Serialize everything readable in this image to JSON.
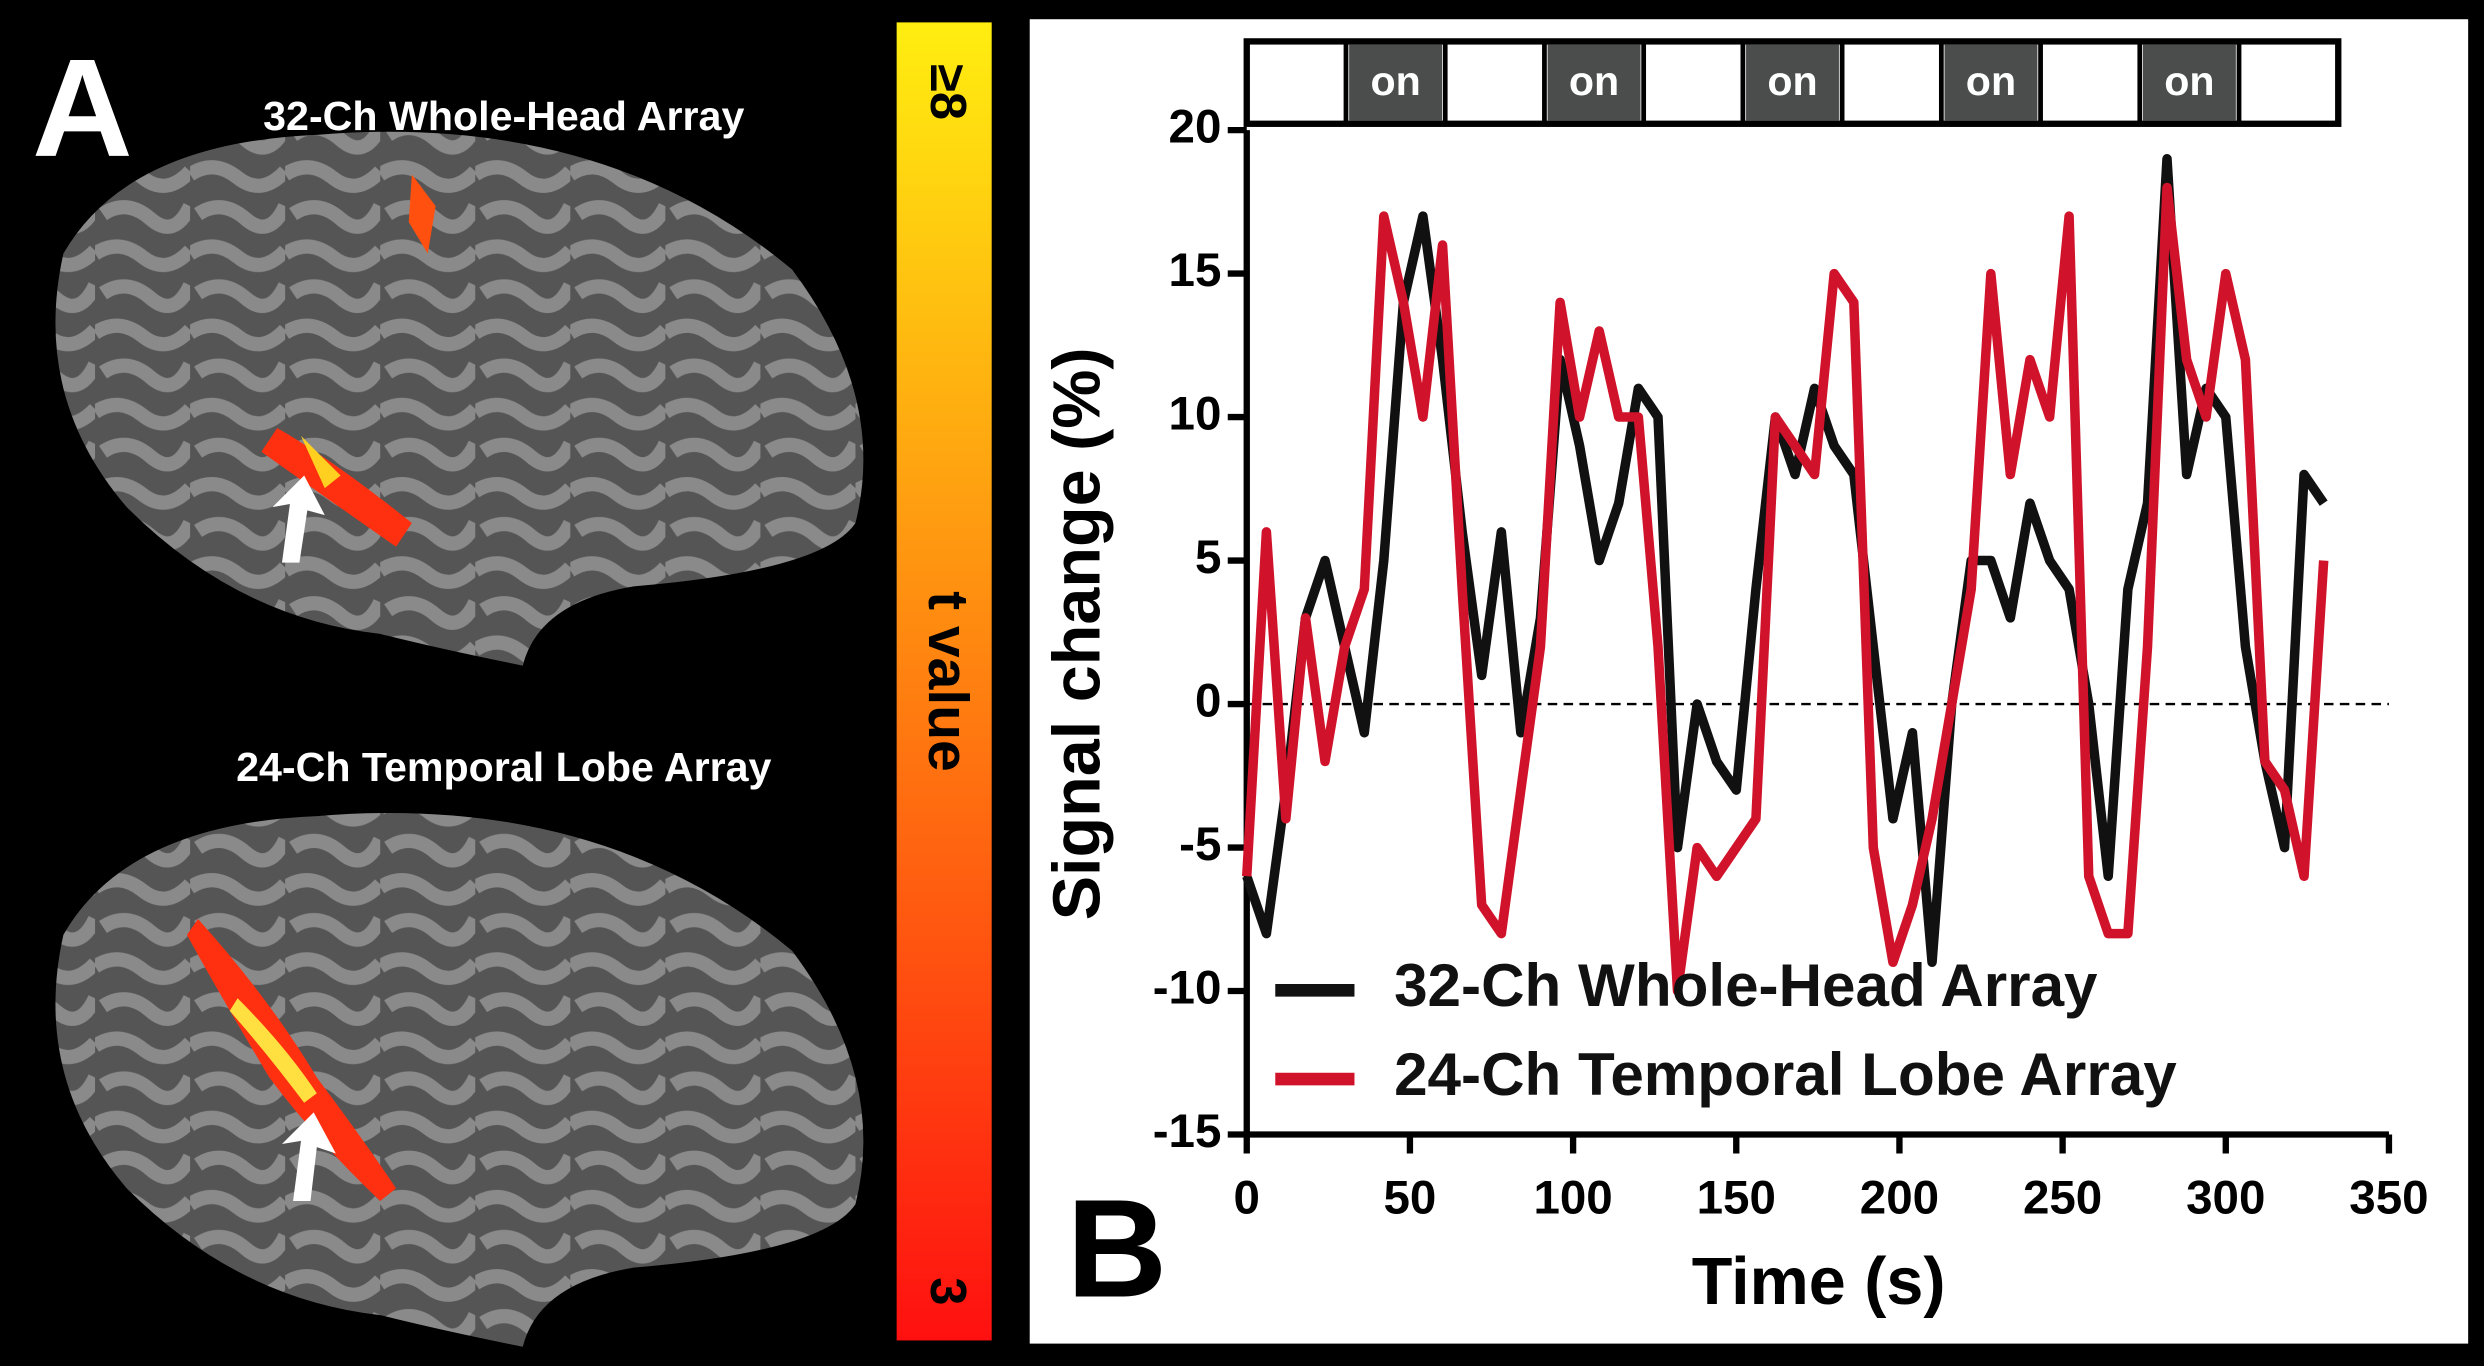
{
  "panel_a": {
    "letter": "A",
    "captions": [
      "32-Ch Whole-Head Array",
      "24-Ch Temporal Lobe Array"
    ]
  },
  "colorbar": {
    "label": "t value",
    "max_label": "≥8",
    "min_label": "3"
  },
  "chart_data": {
    "type": "line",
    "panel_letter": "B",
    "xlabel": "Time (s)",
    "ylabel": "Signal change (%)",
    "block_labels": [
      "on",
      "on",
      "on",
      "on",
      "on"
    ],
    "x": [
      0,
      6,
      12,
      18,
      24,
      30,
      36,
      42,
      48,
      54,
      60,
      66,
      72,
      78,
      84,
      90,
      96,
      102,
      108,
      114,
      120,
      126,
      132,
      138,
      144,
      150,
      156,
      162,
      168,
      174,
      180,
      186,
      192,
      198,
      204,
      210,
      216,
      222,
      228,
      234,
      240,
      246,
      252,
      258,
      264,
      270,
      276,
      282,
      288,
      294,
      300,
      306,
      312,
      318,
      324,
      330
    ],
    "series": [
      {
        "name": "32-Ch Whole-Head Array",
        "color": "#111111",
        "values": [
          -6,
          -8,
          -3,
          3,
          5,
          2,
          -1,
          5,
          14,
          17,
          12,
          6,
          1,
          6,
          -1,
          3,
          12,
          9,
          5,
          7,
          11,
          10,
          -5,
          0,
          -2,
          -3,
          4,
          10,
          8,
          11,
          9,
          8,
          2,
          -4,
          -1,
          -9,
          0,
          5,
          5,
          3,
          7,
          5,
          4,
          0,
          -6,
          4,
          7,
          19,
          8,
          11,
          10,
          2,
          -2,
          -5,
          8,
          7
        ]
      },
      {
        "name": "24-Ch Temporal Lobe Array",
        "color": "#d0132a",
        "values": [
          -6,
          6,
          -4,
          3,
          -2,
          2,
          4,
          17,
          14,
          10,
          16,
          4,
          -7,
          -8,
          -3,
          2,
          14,
          10,
          13,
          10,
          10,
          2,
          -10,
          -5,
          -6,
          -5,
          -4,
          10,
          9,
          8,
          15,
          14,
          -5,
          -9,
          -7,
          -4,
          0,
          4,
          15,
          8,
          12,
          10,
          17,
          -6,
          -8,
          -8,
          2,
          18,
          12,
          10,
          15,
          12,
          -2,
          -3,
          -6,
          5
        ]
      }
    ],
    "xlim": [
      0,
      350
    ],
    "xticks": [
      0,
      50,
      100,
      150,
      200,
      250,
      300,
      350
    ],
    "ylim": [
      -15,
      20
    ],
    "yticks": [
      -15,
      -10,
      -5,
      0,
      5,
      10,
      15,
      20
    ],
    "zero_line": true,
    "legend": "lower left"
  }
}
